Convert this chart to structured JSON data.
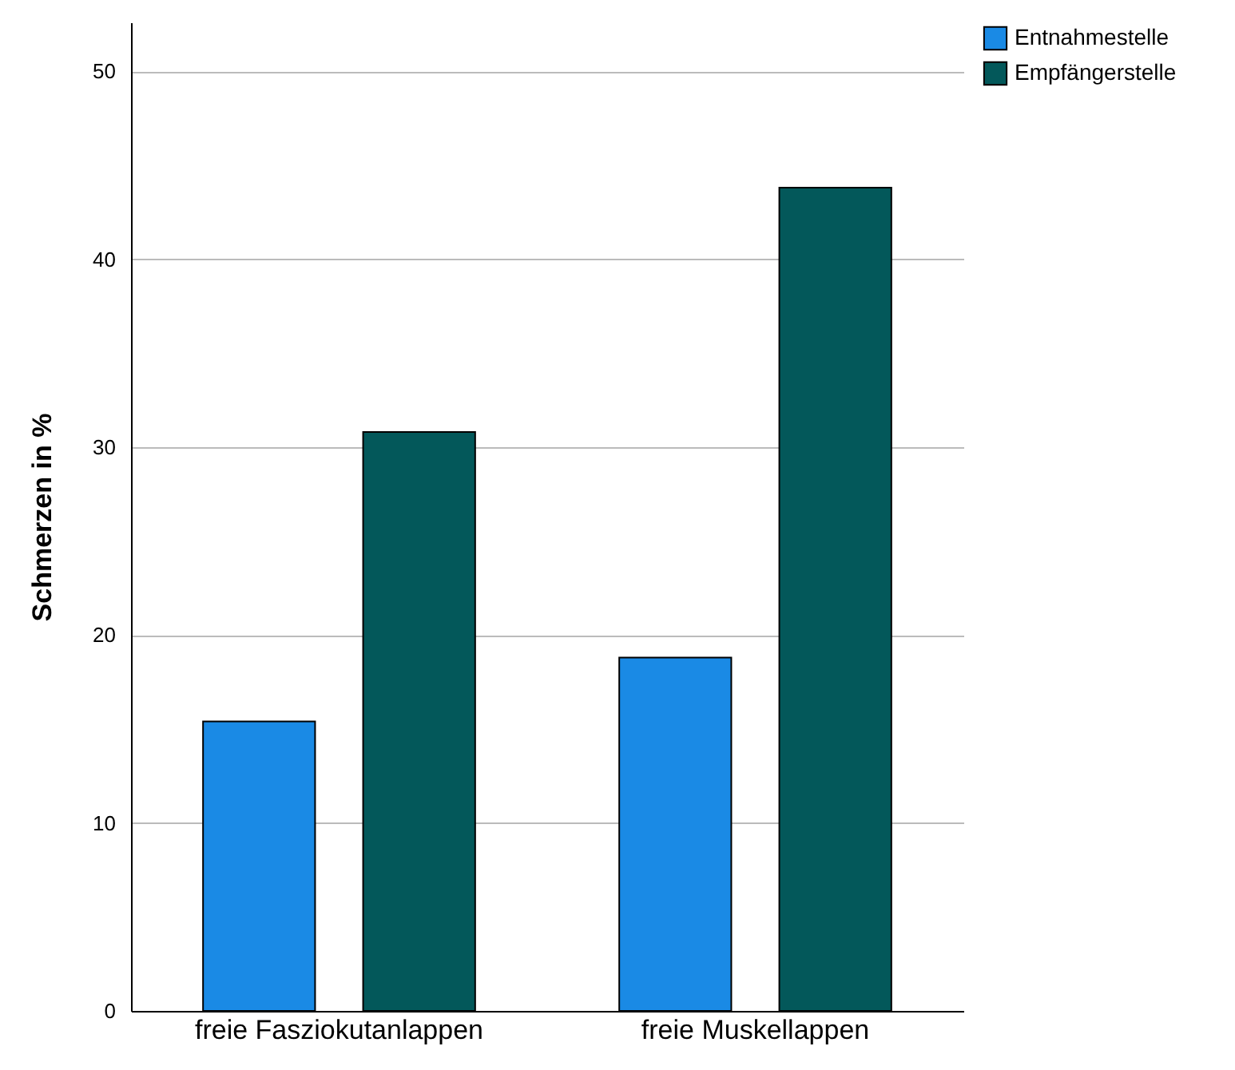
{
  "chart_data": {
    "type": "bar",
    "ylabel": "Schmerzen in %",
    "categories": [
      "freie Fasziokutanlappen",
      "freie Muskellappen"
    ],
    "series": [
      {
        "name": "Entnahmestelle",
        "color": "#1a8ae5",
        "values": [
          15.4,
          18.8
        ]
      },
      {
        "name": "Empfängerstelle",
        "color": "#03585a",
        "values": [
          30.8,
          43.8
        ]
      }
    ],
    "ylim": [
      0,
      52.6
    ],
    "yticks": [
      0,
      10,
      20,
      30,
      40,
      50
    ],
    "grid": "y",
    "legend": "top right"
  }
}
